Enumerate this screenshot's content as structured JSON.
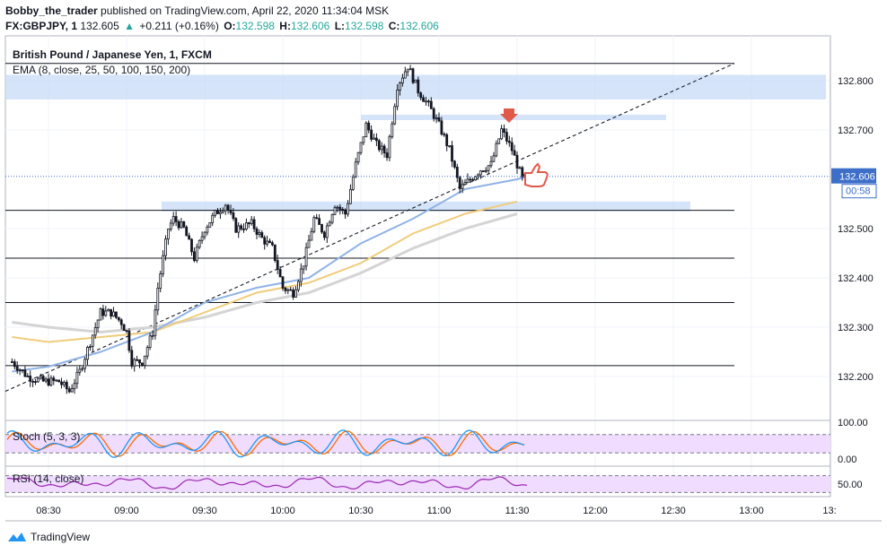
{
  "header": {
    "author": "Bobby_the_trader",
    "published_text": "published on TradingView.com, April 22, 2020 11:34:04 MSK",
    "symbol": "FX:GBPJPY, 1",
    "last": "132.605",
    "change_arrow": "▲",
    "change": "+0.211 (+0.16%)",
    "o_label": "O:",
    "o_value": "132.598",
    "h_label": "H:",
    "h_value": "132.606",
    "l_label": "L:",
    "l_value": "132.598",
    "c_label": "C:",
    "c_value": "132.606"
  },
  "footer": {
    "brand": "TradingView"
  },
  "colors": {
    "up": "#26a69a",
    "zone": "#c7dbf5",
    "ema_blue": "#8fb3e6",
    "ema_gold": "#f0cc7a",
    "ema_gray": "#d4d4d4",
    "stoch_k": "#2196f3",
    "stoch_d": "#ff6d00",
    "rsi": "#9c27b0",
    "osc_band": "#efdcff",
    "arrow": "#e05a4a",
    "price_tag": "#3d6fc8"
  },
  "chart_data": [
    {
      "type": "candlestick",
      "title": "British Pound / Japanese Yen, 1, FXCM",
      "indicator_label": "EMA (8, close, 25, 50, 100, 150, 200)",
      "y_ticks": [
        "132.800",
        "132.700",
        "132.500",
        "132.400",
        "132.300",
        "132.200"
      ],
      "ylim": [
        132.14,
        132.86
      ],
      "x_ticks": [
        "08:30",
        "09:00",
        "09:30",
        "10:00",
        "10:30",
        "11:00",
        "11:30",
        "12:00",
        "12:30",
        "13:00",
        "13:"
      ],
      "current_price": "132.606",
      "countdown": "00:58",
      "horizontal_levels": [
        132.835,
        132.537,
        132.44,
        132.35,
        132.222
      ],
      "zones": [
        {
          "from": 132.762,
          "to": 132.812
        },
        {
          "from": 132.72,
          "to": 132.731
        },
        {
          "from": 132.535,
          "to": 132.555
        }
      ],
      "close_path": [
        [
          "08:16",
          132.23
        ],
        [
          "08:22",
          132.2
        ],
        [
          "08:28",
          132.19
        ],
        [
          "08:34",
          132.19
        ],
        [
          "08:38",
          132.17
        ],
        [
          "08:42",
          132.21
        ],
        [
          "08:46",
          132.27
        ],
        [
          "08:50",
          132.33
        ],
        [
          "08:54",
          132.33
        ],
        [
          "08:58",
          132.31
        ],
        [
          "09:00",
          132.29
        ],
        [
          "09:02",
          132.23
        ],
        [
          "09:06",
          132.23
        ],
        [
          "09:10",
          132.29
        ],
        [
          "09:12",
          132.38
        ],
        [
          "09:16",
          132.5
        ],
        [
          "09:18",
          132.52
        ],
        [
          "09:22",
          132.5
        ],
        [
          "09:26",
          132.44
        ],
        [
          "09:30",
          132.5
        ],
        [
          "09:34",
          132.53
        ],
        [
          "09:38",
          132.55
        ],
        [
          "09:42",
          132.5
        ],
        [
          "09:48",
          132.51
        ],
        [
          "09:52",
          132.48
        ],
        [
          "09:56",
          132.46
        ],
        [
          "10:00",
          132.38
        ],
        [
          "10:04",
          132.37
        ],
        [
          "10:08",
          132.43
        ],
        [
          "10:12",
          132.52
        ],
        [
          "10:16",
          132.49
        ],
        [
          "10:20",
          132.55
        ],
        [
          "10:24",
          132.53
        ],
        [
          "10:28",
          132.63
        ],
        [
          "10:32",
          132.71
        ],
        [
          "10:36",
          132.67
        ],
        [
          "10:40",
          132.65
        ],
        [
          "10:44",
          132.79
        ],
        [
          "10:48",
          132.83
        ],
        [
          "10:52",
          132.78
        ],
        [
          "10:56",
          132.75
        ],
        [
          "11:00",
          132.71
        ],
        [
          "11:04",
          132.66
        ],
        [
          "11:08",
          132.58
        ],
        [
          "11:12",
          132.6
        ],
        [
          "11:16",
          132.62
        ],
        [
          "11:20",
          132.63
        ],
        [
          "11:24",
          132.7
        ],
        [
          "11:28",
          132.66
        ],
        [
          "11:32",
          132.6
        ],
        [
          "11:34",
          132.606
        ]
      ],
      "ema_50": [
        [
          "08:16",
          132.21
        ],
        [
          "08:30",
          132.22
        ],
        [
          "08:50",
          132.25
        ],
        [
          "09:10",
          132.29
        ],
        [
          "09:30",
          132.35
        ],
        [
          "09:50",
          132.38
        ],
        [
          "10:10",
          132.4
        ],
        [
          "10:30",
          132.47
        ],
        [
          "10:50",
          132.52
        ],
        [
          "11:10",
          132.58
        ],
        [
          "11:30",
          132.6
        ],
        [
          "11:34",
          132.606
        ]
      ],
      "ema_100": [
        [
          "08:16",
          132.28
        ],
        [
          "08:30",
          132.27
        ],
        [
          "08:50",
          132.28
        ],
        [
          "09:10",
          132.29
        ],
        [
          "09:30",
          132.33
        ],
        [
          "09:50",
          132.37
        ],
        [
          "10:10",
          132.39
        ],
        [
          "10:30",
          132.43
        ],
        [
          "10:50",
          132.49
        ],
        [
          "11:10",
          132.53
        ],
        [
          "11:30",
          132.555
        ]
      ],
      "ema_200": [
        [
          "08:16",
          132.31
        ],
        [
          "08:30",
          132.3
        ],
        [
          "08:50",
          132.29
        ],
        [
          "09:10",
          132.3
        ],
        [
          "09:30",
          132.32
        ],
        [
          "09:50",
          132.35
        ],
        [
          "10:10",
          132.37
        ],
        [
          "10:30",
          132.41
        ],
        [
          "10:50",
          132.46
        ],
        [
          "11:10",
          132.5
        ],
        [
          "11:30",
          132.53
        ]
      ],
      "trendline": [
        [
          "08:16",
          132.17
        ],
        [
          "12:45",
          132.835
        ]
      ]
    },
    {
      "type": "line",
      "label": "Stoch (5, 3, 3)",
      "y_ticks": [
        "100.00",
        "0.00"
      ],
      "bands": [
        80,
        20
      ]
    },
    {
      "type": "line",
      "label": "RSI (14, close)",
      "y_ticks": [
        "50.00"
      ],
      "bands": [
        70,
        30
      ]
    }
  ]
}
